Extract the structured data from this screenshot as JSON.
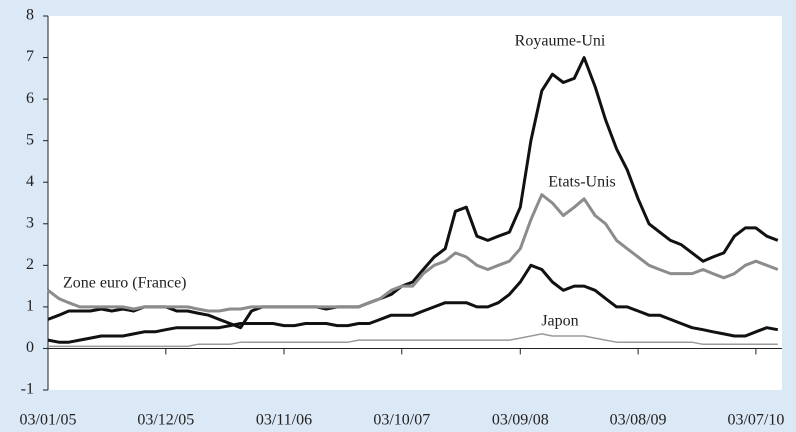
{
  "chart_data": {
    "type": "line",
    "annotations": [
      "Royaume-Uni",
      "Etats-Unis",
      "Zone euro (France)",
      "Japon"
    ],
    "x": [
      "2005-01-03",
      "2005-02-03",
      "2005-03-03",
      "2005-04-03",
      "2005-05-03",
      "2005-06-03",
      "2005-07-03",
      "2005-08-03",
      "2005-09-03",
      "2005-10-03",
      "2005-11-03",
      "2005-12-03",
      "2006-01-03",
      "2006-02-03",
      "2006-03-03",
      "2006-04-03",
      "2006-05-03",
      "2006-06-03",
      "2006-07-03",
      "2006-08-03",
      "2006-09-03",
      "2006-10-03",
      "2006-11-03",
      "2006-12-03",
      "2007-01-03",
      "2007-02-03",
      "2007-03-03",
      "2007-04-03",
      "2007-05-03",
      "2007-06-03",
      "2007-07-03",
      "2007-08-03",
      "2007-09-03",
      "2007-10-03",
      "2007-11-03",
      "2007-12-03",
      "2008-01-03",
      "2008-02-03",
      "2008-03-03",
      "2008-04-03",
      "2008-05-03",
      "2008-06-03",
      "2008-07-03",
      "2008-08-03",
      "2008-09-03",
      "2008-10-03",
      "2008-11-03",
      "2008-12-03",
      "2009-01-03",
      "2009-02-03",
      "2009-03-03",
      "2009-04-03",
      "2009-05-03",
      "2009-06-03",
      "2009-07-03",
      "2009-08-03",
      "2009-09-03",
      "2009-10-03",
      "2009-11-03",
      "2009-12-03",
      "2010-01-03",
      "2010-02-03",
      "2010-03-03",
      "2010-04-03",
      "2010-05-03",
      "2010-06-03",
      "2010-07-03",
      "2010-08-03",
      "2010-09-03"
    ],
    "series": [
      {
        "name": "Royaume-Uni",
        "color": "#111111",
        "width": 3,
        "values": [
          0.7,
          0.8,
          0.9,
          0.9,
          0.9,
          0.95,
          0.9,
          0.95,
          0.9,
          1.0,
          1.0,
          1.0,
          0.9,
          0.9,
          0.85,
          0.8,
          0.7,
          0.6,
          0.5,
          0.9,
          1.0,
          1.0,
          1.0,
          1.0,
          1.0,
          1.0,
          0.95,
          1.0,
          1.0,
          1.0,
          1.1,
          1.2,
          1.3,
          1.5,
          1.6,
          1.9,
          2.2,
          2.4,
          3.3,
          3.4,
          2.7,
          2.6,
          2.7,
          2.8,
          3.4,
          5.0,
          6.2,
          6.6,
          6.4,
          6.5,
          7.0,
          6.3,
          5.5,
          4.8,
          4.3,
          3.6,
          3.0,
          2.8,
          2.6,
          2.5,
          2.3,
          2.1,
          2.2,
          2.3,
          2.7,
          2.9,
          2.9,
          2.7,
          2.6
        ]
      },
      {
        "name": "Etats-Unis",
        "color": "#8c8c8c",
        "width": 3,
        "values": [
          1.4,
          1.2,
          1.1,
          1.0,
          1.0,
          1.0,
          1.0,
          1.0,
          0.95,
          1.0,
          1.0,
          1.0,
          1.0,
          1.0,
          0.95,
          0.9,
          0.9,
          0.95,
          0.95,
          1.0,
          1.0,
          1.0,
          1.0,
          1.0,
          1.0,
          1.0,
          1.0,
          1.0,
          1.0,
          1.0,
          1.1,
          1.2,
          1.4,
          1.5,
          1.5,
          1.8,
          2.0,
          2.1,
          2.3,
          2.2,
          2.0,
          1.9,
          2.0,
          2.1,
          2.4,
          3.1,
          3.7,
          3.5,
          3.2,
          3.4,
          3.6,
          3.2,
          3.0,
          2.6,
          2.4,
          2.2,
          2.0,
          1.9,
          1.8,
          1.8,
          1.8,
          1.9,
          1.8,
          1.7,
          1.8,
          2.0,
          2.1,
          2.0,
          1.9
        ]
      },
      {
        "name": "Zone euro (France)",
        "color": "#111111",
        "width": 3,
        "values": [
          0.2,
          0.15,
          0.15,
          0.2,
          0.25,
          0.3,
          0.3,
          0.3,
          0.35,
          0.4,
          0.4,
          0.45,
          0.5,
          0.5,
          0.5,
          0.5,
          0.5,
          0.55,
          0.6,
          0.6,
          0.6,
          0.6,
          0.55,
          0.55,
          0.6,
          0.6,
          0.6,
          0.55,
          0.55,
          0.6,
          0.6,
          0.7,
          0.8,
          0.8,
          0.8,
          0.9,
          1.0,
          1.1,
          1.1,
          1.1,
          1.0,
          1.0,
          1.1,
          1.3,
          1.6,
          2.0,
          1.9,
          1.6,
          1.4,
          1.5,
          1.5,
          1.4,
          1.2,
          1.0,
          1.0,
          0.9,
          0.8,
          0.8,
          0.7,
          0.6,
          0.5,
          0.45,
          0.4,
          0.35,
          0.3,
          0.3,
          0.4,
          0.5,
          0.45
        ]
      },
      {
        "name": "Japon",
        "color": "#9a9a9a",
        "width": 1.5,
        "values": [
          0.05,
          0.05,
          0.05,
          0.05,
          0.05,
          0.05,
          0.05,
          0.05,
          0.05,
          0.05,
          0.05,
          0.05,
          0.05,
          0.05,
          0.1,
          0.1,
          0.1,
          0.1,
          0.15,
          0.15,
          0.15,
          0.15,
          0.15,
          0.15,
          0.15,
          0.15,
          0.15,
          0.15,
          0.15,
          0.2,
          0.2,
          0.2,
          0.2,
          0.2,
          0.2,
          0.2,
          0.2,
          0.2,
          0.2,
          0.2,
          0.2,
          0.2,
          0.2,
          0.2,
          0.25,
          0.3,
          0.35,
          0.3,
          0.3,
          0.3,
          0.3,
          0.25,
          0.2,
          0.15,
          0.15,
          0.15,
          0.15,
          0.15,
          0.15,
          0.15,
          0.15,
          0.1,
          0.1,
          0.1,
          0.1,
          0.1,
          0.1,
          0.1,
          0.1
        ]
      }
    ],
    "xlim": [
      "2005-01-03",
      "2010-09-15"
    ],
    "xticks": [
      {
        "value": "2005-01-03",
        "label": "03/01/05"
      },
      {
        "value": "2005-12-03",
        "label": "03/12/05"
      },
      {
        "value": "2006-11-03",
        "label": "03/11/06"
      },
      {
        "value": "2007-10-03",
        "label": "03/10/07"
      },
      {
        "value": "2008-09-03",
        "label": "03/09/08"
      },
      {
        "value": "2009-08-03",
        "label": "03/08/09"
      },
      {
        "value": "2010-07-03",
        "label": "03/07/10"
      }
    ],
    "ylim": [
      -1,
      8
    ],
    "yticks": [
      8,
      7,
      6,
      5,
      4,
      3,
      2,
      1,
      0,
      -1
    ],
    "grid": false
  }
}
